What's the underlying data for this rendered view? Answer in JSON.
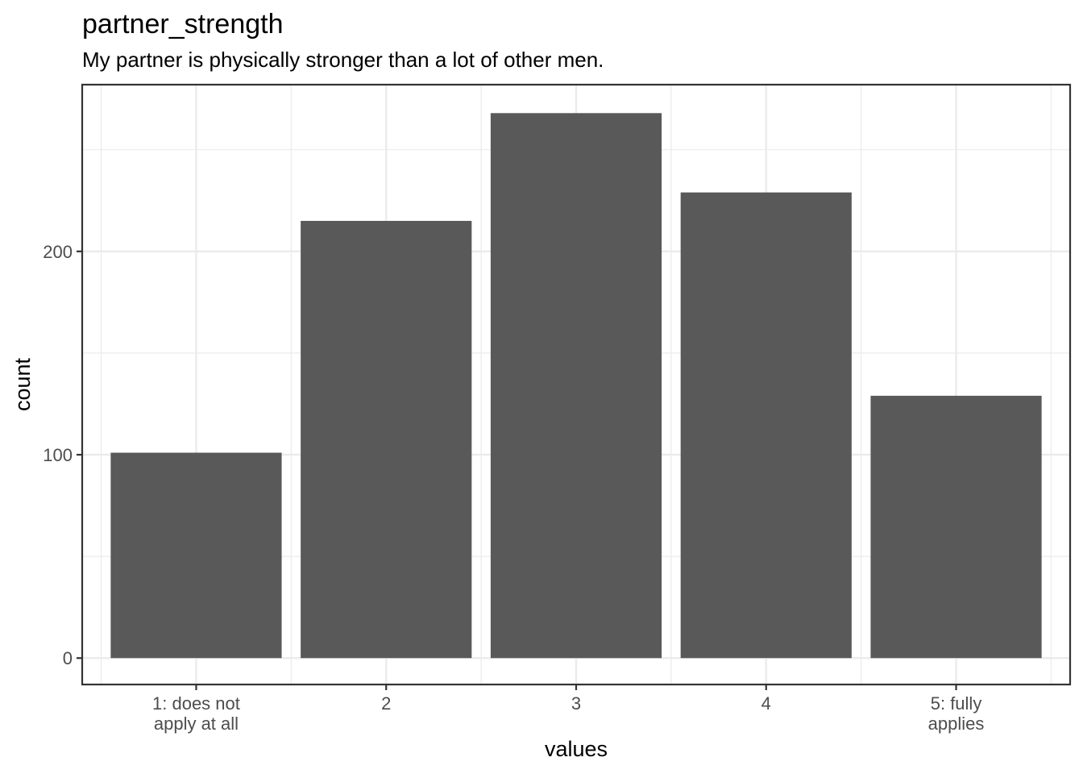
{
  "chart_data": {
    "type": "bar",
    "title": "partner_strength",
    "subtitle": "My partner is physically stronger than a lot of other men.",
    "xlabel": "values",
    "ylabel": "count",
    "categories": [
      "1: does not apply at all",
      "2",
      "3",
      "4",
      "5: fully applies"
    ],
    "category_lines": [
      [
        "1: does not",
        "apply at all"
      ],
      [
        "2"
      ],
      [
        "3"
      ],
      [
        "4"
      ],
      [
        "5: fully",
        "applies"
      ]
    ],
    "values": [
      101,
      215,
      268,
      229,
      129
    ],
    "ylim": [
      -13,
      282
    ],
    "yticks": [
      0,
      100,
      200
    ],
    "ytick_labels": [
      "0",
      "100",
      "200"
    ],
    "grid": true,
    "colors": {
      "bar": "#595959",
      "grid": "#ebebeb",
      "panel_border": "#333333",
      "tick_text": "#4d4d4d"
    }
  }
}
